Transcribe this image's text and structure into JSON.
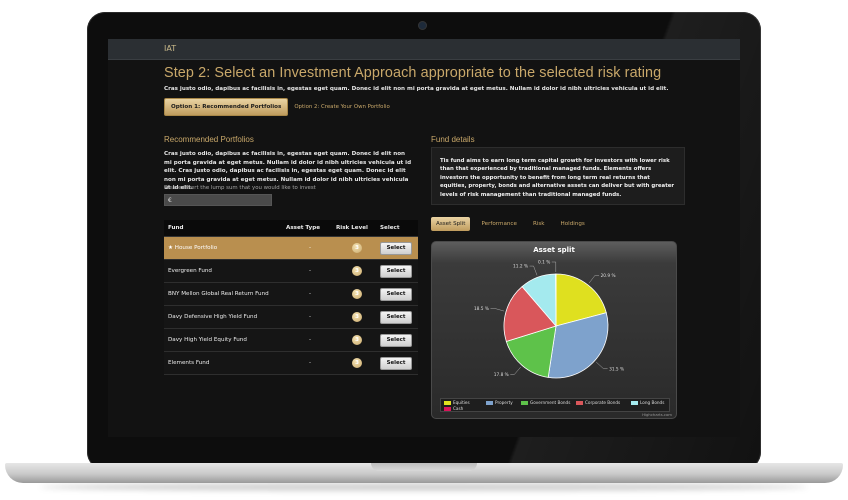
{
  "app": {
    "title": "IAT"
  },
  "page": {
    "heading": "Step 2: Select an Investment Approach appropriate to the selected risk rating",
    "intro": "Cras justo odio, dapibus ac facilisis in, egestas eget quam. Donec id elit non mi porta gravida at eget metus. Nullam id dolor id nibh ultricies vehicula ut id elit.",
    "option1": "Option 1: Recommended Portfolios",
    "option2": "Option 2: Create Your Own Portfolio"
  },
  "left": {
    "title": "Recommended Portfolios",
    "text": "Cras justo odio, dapibus ac facilisis in, egestas eget quam. Donec id elit non mi porta gravida at eget metus. Nullam id dolor id nibh ultricies vehicula ut id elit. Cras justo odio, dapibus ac facilisis in, egestas eget quam. Donec id elit non mi porta gravida at eget metus. Nullam id dolor id nibh ultricies vehicula ut id elit.",
    "lump_label": "Please insert the lump sum that you would like to invest",
    "currency": "€"
  },
  "table": {
    "headers": [
      "Fund",
      "Asset Type",
      "Risk Level",
      "Select"
    ],
    "select_label": "Select",
    "rows": [
      {
        "fund": "★ House Portfolio",
        "asset": "-",
        "risk": "3",
        "selected": true
      },
      {
        "fund": "Evergreen Fund",
        "asset": "-",
        "risk": "3",
        "selected": false
      },
      {
        "fund": "BNY Mellon Global Real Return Fund",
        "asset": "-",
        "risk": "3",
        "selected": false
      },
      {
        "fund": "Davy Defensive High Yield Fund",
        "asset": "-",
        "risk": "3",
        "selected": false
      },
      {
        "fund": "Davy High Yield Equity Fund",
        "asset": "-",
        "risk": "3",
        "selected": false
      },
      {
        "fund": "Elements Fund",
        "asset": "-",
        "risk": "3",
        "selected": false
      }
    ]
  },
  "details": {
    "title": "Fund details",
    "text": "Tis fund aims to earn long term capital growth for investors with lower risk than that experienced by traditional managed funds. Elements offers investors the opportunity to benefit from long term real returns that equities, property, bonds and alternative assets can deliver but with greater levels of risk management than traditional managed funds."
  },
  "tabs": [
    "Asset Split",
    "Performance",
    "Risk",
    "Holdings"
  ],
  "chart_data": {
    "type": "pie",
    "title": "Asset split",
    "categories": [
      "Equities",
      "Property",
      "Government Bonds",
      "Corporate Bonds",
      "Long Bonds",
      "Cash"
    ],
    "values": [
      20.9,
      31.5,
      17.8,
      18.5,
      11.2,
      0.1
    ],
    "labels": [
      "20.9 %",
      "31.5 %",
      "17.8 %",
      "18.5 %",
      "11.2 %",
      "0.1 %"
    ],
    "colors": [
      "#dfe01f",
      "#7ea2cc",
      "#5ec24a",
      "#d9575b",
      "#a4eaee",
      "#d8145a"
    ],
    "credits": "Highcharts.com"
  }
}
